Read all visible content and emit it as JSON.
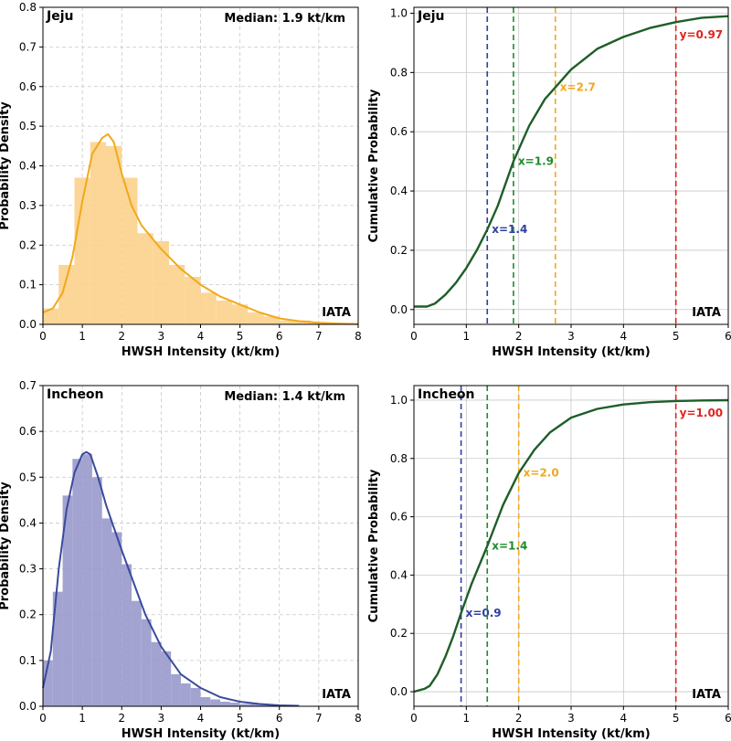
{
  "panels": {
    "jeju_pdf": {
      "title": "Jeju",
      "median_text": "Median: 1.9 kt/km",
      "watermark": "IATA"
    },
    "jeju_cdf": {
      "title": "Jeju",
      "watermark": "IATA",
      "lines": [
        {
          "value": 1.4,
          "label": "x=1.4",
          "color": "#2f3f9e"
        },
        {
          "value": 1.9,
          "label": "x=1.9",
          "color": "#1f8a2a"
        },
        {
          "value": 2.7,
          "label": "x=2.7",
          "color": "#f0a91c"
        }
      ],
      "hline_x": 5.0,
      "hline_label": "y=0.97",
      "hline_color": "#e0241e"
    },
    "incheon_pdf": {
      "title": "Incheon",
      "median_text": "Median: 1.4 kt/km",
      "watermark": "IATA"
    },
    "incheon_cdf": {
      "title": "Incheon",
      "watermark": "IATA",
      "lines": [
        {
          "value": 0.9,
          "label": "x=0.9",
          "color": "#2f3f9e"
        },
        {
          "value": 1.4,
          "label": "x=1.4",
          "color": "#1f8a2a"
        },
        {
          "value": 2.0,
          "label": "x=2.0",
          "color": "#f0a91c"
        }
      ],
      "hline_x": 5.0,
      "hline_label": "y=1.00",
      "hline_color": "#e0241e"
    }
  },
  "colors": {
    "jeju_fill": "#fbd38d",
    "jeju_line": "#f0a91c",
    "incheon_fill": "#9a9bcc",
    "incheon_line": "#3a4a9c",
    "cdf_line": "#1e5e28"
  },
  "chart_data": [
    {
      "id": "jeju_pdf",
      "type": "bar",
      "title": "Jeju",
      "xlabel": "HWSH Intensity (kt/km)",
      "ylabel": "Probability Density",
      "xlim": [
        0,
        8
      ],
      "ylim": [
        0,
        0.8
      ],
      "xticks": [
        0,
        1,
        2,
        3,
        4,
        5,
        6,
        7,
        8
      ],
      "yticks": [
        0.0,
        0.1,
        0.2,
        0.3,
        0.4,
        0.5,
        0.6,
        0.7,
        0.8
      ],
      "grid": true,
      "bins": [
        {
          "x0": 0.0,
          "x1": 0.4,
          "value": 0.04
        },
        {
          "x0": 0.4,
          "x1": 0.8,
          "value": 0.15
        },
        {
          "x0": 0.8,
          "x1": 1.2,
          "value": 0.37
        },
        {
          "x0": 1.2,
          "x1": 1.6,
          "value": 0.46
        },
        {
          "x0": 1.6,
          "x1": 2.0,
          "value": 0.45
        },
        {
          "x0": 2.0,
          "x1": 2.4,
          "value": 0.37
        },
        {
          "x0": 2.4,
          "x1": 2.8,
          "value": 0.23
        },
        {
          "x0": 2.8,
          "x1": 3.2,
          "value": 0.21
        },
        {
          "x0": 3.2,
          "x1": 3.6,
          "value": 0.15
        },
        {
          "x0": 3.6,
          "x1": 4.0,
          "value": 0.12
        },
        {
          "x0": 4.0,
          "x1": 4.4,
          "value": 0.08
        },
        {
          "x0": 4.4,
          "x1": 4.8,
          "value": 0.06
        },
        {
          "x0": 4.8,
          "x1": 5.2,
          "value": 0.05
        },
        {
          "x0": 5.2,
          "x1": 5.6,
          "value": 0.03
        },
        {
          "x0": 5.6,
          "x1": 6.0,
          "value": 0.02
        },
        {
          "x0": 6.0,
          "x1": 6.4,
          "value": 0.01
        },
        {
          "x0": 6.4,
          "x1": 6.8,
          "value": 0.01
        },
        {
          "x0": 6.8,
          "x1": 7.2,
          "value": 0.005
        },
        {
          "x0": 7.2,
          "x1": 7.6,
          "value": 0.003
        }
      ],
      "kde": {
        "x": [
          0.0,
          0.25,
          0.5,
          0.75,
          1.0,
          1.25,
          1.5,
          1.65,
          1.8,
          2.0,
          2.25,
          2.5,
          2.75,
          3.0,
          3.5,
          4.0,
          4.5,
          5.0,
          5.5,
          6.0,
          6.5,
          7.0,
          7.5,
          8.0
        ],
        "y": [
          0.03,
          0.04,
          0.08,
          0.17,
          0.31,
          0.43,
          0.47,
          0.48,
          0.46,
          0.38,
          0.3,
          0.25,
          0.22,
          0.19,
          0.14,
          0.1,
          0.07,
          0.05,
          0.03,
          0.015,
          0.008,
          0.004,
          0.002,
          0.001
        ]
      }
    },
    {
      "id": "jeju_cdf",
      "type": "line",
      "title": "Jeju",
      "xlabel": "HWSH Intensity (kt/km)",
      "ylabel": "Cumulative Probability",
      "xlim": [
        0,
        6
      ],
      "ylim": [
        -0.05,
        1.02
      ],
      "xticks": [
        0,
        1,
        2,
        3,
        4,
        5,
        6
      ],
      "yticks": [
        0.0,
        0.2,
        0.4,
        0.6,
        0.8,
        1.0
      ],
      "grid": true,
      "x": [
        0.0,
        0.25,
        0.4,
        0.6,
        0.8,
        1.0,
        1.2,
        1.4,
        1.6,
        1.9,
        2.2,
        2.5,
        2.7,
        3.0,
        3.5,
        4.0,
        4.5,
        5.0,
        5.5,
        6.0
      ],
      "y": [
        0.01,
        0.01,
        0.02,
        0.05,
        0.09,
        0.14,
        0.2,
        0.27,
        0.35,
        0.5,
        0.62,
        0.71,
        0.75,
        0.81,
        0.88,
        0.92,
        0.95,
        0.97,
        0.985,
        0.99
      ]
    },
    {
      "id": "incheon_pdf",
      "type": "bar",
      "title": "Incheon",
      "xlabel": "HWSH Intensity (kt/km)",
      "ylabel": "Probability Density",
      "xlim": [
        0,
        8
      ],
      "ylim": [
        0,
        0.7
      ],
      "xticks": [
        0,
        1,
        2,
        3,
        4,
        5,
        6,
        7,
        8
      ],
      "yticks": [
        0.0,
        0.1,
        0.2,
        0.3,
        0.4,
        0.5,
        0.6,
        0.7
      ],
      "grid": true,
      "bins": [
        {
          "x0": 0.0,
          "x1": 0.25,
          "value": 0.1
        },
        {
          "x0": 0.25,
          "x1": 0.5,
          "value": 0.25
        },
        {
          "x0": 0.5,
          "x1": 0.75,
          "value": 0.46
        },
        {
          "x0": 0.75,
          "x1": 1.0,
          "value": 0.54
        },
        {
          "x0": 1.0,
          "x1": 1.25,
          "value": 0.55
        },
        {
          "x0": 1.25,
          "x1": 1.5,
          "value": 0.5
        },
        {
          "x0": 1.5,
          "x1": 1.75,
          "value": 0.41
        },
        {
          "x0": 1.75,
          "x1": 2.0,
          "value": 0.38
        },
        {
          "x0": 2.0,
          "x1": 2.25,
          "value": 0.31
        },
        {
          "x0": 2.25,
          "x1": 2.5,
          "value": 0.23
        },
        {
          "x0": 2.5,
          "x1": 2.75,
          "value": 0.19
        },
        {
          "x0": 2.75,
          "x1": 3.0,
          "value": 0.14
        },
        {
          "x0": 3.0,
          "x1": 3.25,
          "value": 0.12
        },
        {
          "x0": 3.25,
          "x1": 3.5,
          "value": 0.07
        },
        {
          "x0": 3.5,
          "x1": 3.75,
          "value": 0.05
        },
        {
          "x0": 3.75,
          "x1": 4.0,
          "value": 0.04
        },
        {
          "x0": 4.0,
          "x1": 4.25,
          "value": 0.02
        },
        {
          "x0": 4.25,
          "x1": 4.5,
          "value": 0.015
        },
        {
          "x0": 4.5,
          "x1": 4.75,
          "value": 0.01
        },
        {
          "x0": 4.75,
          "x1": 5.0,
          "value": 0.008
        },
        {
          "x0": 5.0,
          "x1": 5.5,
          "value": 0.005
        },
        {
          "x0": 5.5,
          "x1": 6.0,
          "value": 0.003
        },
        {
          "x0": 6.0,
          "x1": 6.5,
          "value": 0.002
        }
      ],
      "kde": {
        "x": [
          0.0,
          0.2,
          0.4,
          0.6,
          0.8,
          1.0,
          1.1,
          1.2,
          1.4,
          1.6,
          1.8,
          2.0,
          2.3,
          2.6,
          3.0,
          3.5,
          4.0,
          4.5,
          5.0,
          5.5,
          6.0,
          6.5
        ],
        "y": [
          0.04,
          0.12,
          0.3,
          0.43,
          0.51,
          0.55,
          0.555,
          0.55,
          0.5,
          0.44,
          0.39,
          0.34,
          0.27,
          0.2,
          0.13,
          0.07,
          0.04,
          0.02,
          0.01,
          0.005,
          0.002,
          0.001
        ]
      }
    },
    {
      "id": "incheon_cdf",
      "type": "line",
      "title": "Incheon",
      "xlabel": "HWSH Intensity (kt/km)",
      "ylabel": "Cumulative Probability",
      "xlim": [
        0,
        6
      ],
      "ylim": [
        -0.05,
        1.05
      ],
      "xticks": [
        0,
        1,
        2,
        3,
        4,
        5,
        6
      ],
      "yticks": [
        0.0,
        0.2,
        0.4,
        0.6,
        0.8,
        1.0
      ],
      "grid": true,
      "x": [
        0.0,
        0.2,
        0.3,
        0.45,
        0.6,
        0.75,
        0.9,
        1.1,
        1.4,
        1.7,
        2.0,
        2.3,
        2.6,
        3.0,
        3.5,
        4.0,
        4.5,
        5.0,
        5.5,
        6.0
      ],
      "y": [
        0.0,
        0.01,
        0.02,
        0.06,
        0.12,
        0.19,
        0.27,
        0.37,
        0.5,
        0.64,
        0.75,
        0.83,
        0.89,
        0.94,
        0.97,
        0.985,
        0.993,
        0.997,
        0.999,
        1.0
      ]
    }
  ]
}
